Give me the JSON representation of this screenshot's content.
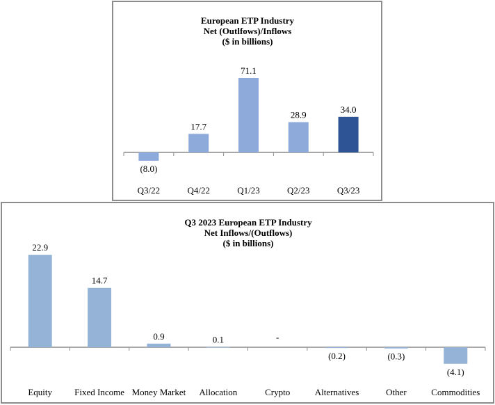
{
  "chart_data": [
    {
      "type": "bar",
      "title_lines": [
        "European ETP Industry",
        "Net (Outlfows)/Inflows",
        "($ in billions)"
      ],
      "xlabel": "",
      "ylabel": "",
      "categories": [
        "Q3/22",
        "Q4/22",
        "Q1/23",
        "Q2/23",
        "Q3/23"
      ],
      "values": [
        -8.0,
        17.7,
        71.1,
        28.9,
        34.0
      ],
      "value_labels": [
        "(8.0)",
        "17.7",
        "71.1",
        "28.9",
        "34.0"
      ],
      "bar_colors": [
        "#8eaadb",
        "#8eaadb",
        "#8eaadb",
        "#8eaadb",
        "#2f5496"
      ],
      "grid": false,
      "legend": "none"
    },
    {
      "type": "bar",
      "title_lines": [
        "Q3 2023 European ETP Industry",
        "Net Inflows/(Outflows)",
        "($ in billions)"
      ],
      "xlabel": "",
      "ylabel": "",
      "categories": [
        "Equity",
        "Fixed Income",
        "Money Market",
        "Allocation",
        "Crypto",
        "Alternatives",
        "Other",
        "Commodities"
      ],
      "values": [
        22.9,
        14.7,
        0.9,
        0.1,
        0.0,
        -0.2,
        -0.3,
        -4.1
      ],
      "value_labels": [
        "22.9",
        "14.7",
        "0.9",
        "0.1",
        "-",
        "(0.2)",
        "(0.3)",
        "(4.1)"
      ],
      "bar_colors": [
        "#95b3d7",
        "#95b3d7",
        "#95b3d7",
        "#95b3d7",
        "#95b3d7",
        "#95b3d7",
        "#95b3d7",
        "#95b3d7"
      ],
      "grid": false,
      "legend": "none"
    }
  ]
}
